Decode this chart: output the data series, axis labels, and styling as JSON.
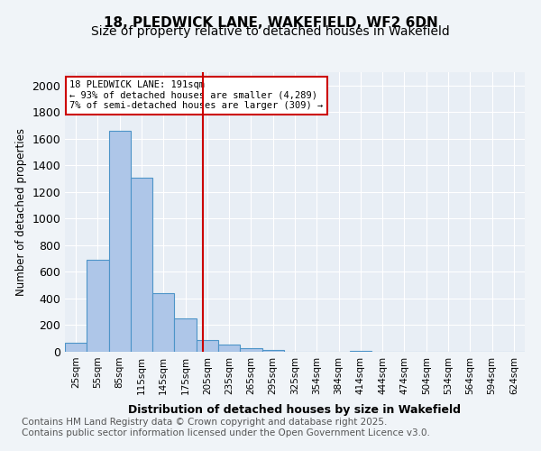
{
  "title_line1": "18, PLEDWICK LANE, WAKEFIELD, WF2 6DN",
  "title_line2": "Size of property relative to detached houses in Wakefield",
  "xlabel": "Distribution of detached houses by size in Wakefield",
  "ylabel": "Number of detached properties",
  "categories": [
    "25sqm",
    "55sqm",
    "85sqm",
    "115sqm",
    "145sqm",
    "175sqm",
    "205sqm",
    "235sqm",
    "265sqm",
    "295sqm",
    "325sqm",
    "354sqm",
    "384sqm",
    "414sqm",
    "444sqm",
    "474sqm",
    "504sqm",
    "534sqm",
    "564sqm",
    "594sqm",
    "624sqm"
  ],
  "values": [
    65,
    690,
    1660,
    1310,
    440,
    250,
    90,
    55,
    25,
    15,
    0,
    0,
    0,
    10,
    0,
    0,
    0,
    0,
    0,
    0,
    0
  ],
  "bar_color": "#aec6e8",
  "bar_edge_color": "#4d94c8",
  "vline_x": 5.8,
  "vline_color": "#cc0000",
  "annotation_text": "18 PLEDWICK LANE: 191sqm\n← 93% of detached houses are smaller (4,289)\n7% of semi-detached houses are larger (309) →",
  "annotation_box_color": "#ffffff",
  "annotation_box_edge": "#cc0000",
  "ylim": [
    0,
    2100
  ],
  "yticks": [
    0,
    200,
    400,
    600,
    800,
    1000,
    1200,
    1400,
    1600,
    1800,
    2000
  ],
  "background_color": "#e8eef5",
  "footnote": "Contains HM Land Registry data © Crown copyright and database right 2025.\nContains public sector information licensed under the Open Government Licence v3.0.",
  "title_fontsize": 11,
  "subtitle_fontsize": 10,
  "footnote_fontsize": 7.5
}
